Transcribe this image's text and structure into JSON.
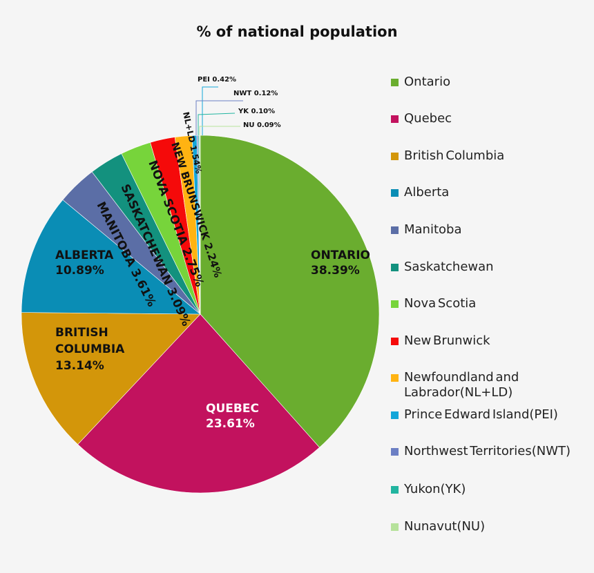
{
  "chart_data": {
    "type": "pie",
    "title": "% of national population",
    "slices": [
      {
        "name": "Ontario",
        "value": 38.39,
        "color": "#6aad2f",
        "label": [
          "ONTARIO",
          "38.39%"
        ],
        "label_color": "#111111"
      },
      {
        "name": "Quebec",
        "value": 23.61,
        "color": "#c2125e",
        "label": [
          "QUEBEC",
          "23.61%"
        ],
        "label_color": "#ffffff"
      },
      {
        "name": "British Columbia",
        "value": 13.14,
        "color": "#d3960a",
        "label": [
          "BRITISH",
          "COLUMBIA",
          "13.14%"
        ],
        "label_color": "#111111"
      },
      {
        "name": "Alberta",
        "value": 10.89,
        "color": "#0a8db5",
        "label": [
          "ALBERTA",
          "10.89%"
        ],
        "label_color": "#111111"
      },
      {
        "name": "Manitoba",
        "value": 3.61,
        "color": "#5b6ea6",
        "label": [
          "MANITOBA 3.61%"
        ],
        "label_color": "#111111"
      },
      {
        "name": "Saskatchewan",
        "value": 3.09,
        "color": "#13917e",
        "label": [
          "SASKATCHEWAN 3.09%"
        ],
        "label_color": "#111111"
      },
      {
        "name": "Nova Scotia",
        "value": 2.75,
        "color": "#77d43b",
        "label": [
          "NOVA SCOTIA 2.75%"
        ],
        "label_color": "#111111"
      },
      {
        "name": "New Brunwick",
        "value": 2.24,
        "color": "#f50a0a",
        "label": [
          "NEW BRUNSWICK 2.24%"
        ],
        "label_color": "#111111"
      },
      {
        "name": "Newfoundland and Labrador(NL+LD)",
        "value": 1.54,
        "color": "#ffb312",
        "label": [
          "NL+LD 1.54%"
        ],
        "label_color": "#111111"
      },
      {
        "name": "Prince Edward Island(PEI)",
        "value": 0.42,
        "color": "#14a6d9",
        "label": [
          "PEI 0.42%"
        ],
        "label_color": "#111111"
      },
      {
        "name": "Northwest Territories(NWT)",
        "value": 0.12,
        "color": "#6c7fc4",
        "label": [
          "NWT 0.12%"
        ],
        "label_color": "#111111"
      },
      {
        "name": "Yukon(YK)",
        "value": 0.1,
        "color": "#22b5a0",
        "label": [
          "YK 0.10%"
        ],
        "label_color": "#111111"
      },
      {
        "name": "Nunavut(NU)",
        "value": 0.09,
        "color": "#b6e29b",
        "label": [
          "NU 0.09%"
        ],
        "label_color": "#111111"
      }
    ],
    "legend": {
      "placement": "right",
      "items": [
        {
          "label": "Ontario",
          "color": "#6aad2f"
        },
        {
          "label": "Quebec",
          "color": "#c2125e"
        },
        {
          "label": "British Columbia",
          "color": "#d3960a"
        },
        {
          "label": "Alberta",
          "color": "#0a8db5"
        },
        {
          "label": "Manitoba",
          "color": "#5b6ea6"
        },
        {
          "label": "Saskatchewan",
          "color": "#13917e"
        },
        {
          "label": "Nova Scotia",
          "color": "#77d43b"
        },
        {
          "label": "New Brunwick",
          "color": "#f50a0a"
        },
        {
          "label": "Newfoundland and\nLabrador(NL+LD)",
          "color": "#ffb312"
        },
        {
          "label": "Prince Edward Island(PEI)",
          "color": "#14a6d9"
        },
        {
          "label": "Northwest Territories(NWT)",
          "color": "#6c7fc4"
        },
        {
          "label": "Yukon(YK)",
          "color": "#22b5a0"
        },
        {
          "label": "Nunavut(NU)",
          "color": "#b6e29b"
        }
      ]
    }
  }
}
